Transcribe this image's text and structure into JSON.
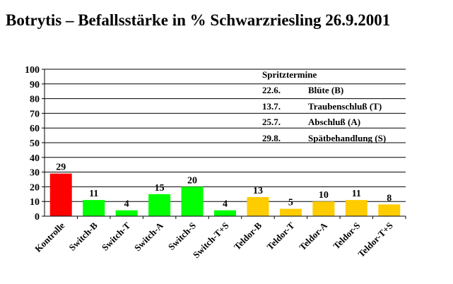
{
  "chart_data": {
    "type": "bar",
    "title": "Botrytis – Befallsstärke in % Schwarzriesling  26.9.2001",
    "xlabel": "",
    "ylabel": "",
    "ylim": [
      0,
      100
    ],
    "yticks": [
      0,
      10,
      20,
      30,
      40,
      50,
      60,
      70,
      80,
      90,
      100
    ],
    "grid": true,
    "categories": [
      "Kontrolle",
      "Switch-B",
      "Switch-T",
      "Switch-A",
      "Switch-S",
      "Switch-T+S",
      "Teldor-B",
      "Teldor-T",
      "Teldor-A",
      "Teldor-S",
      "Teldor-T+S"
    ],
    "values": [
      29,
      11,
      4,
      15,
      20,
      4,
      13,
      5,
      10,
      11,
      8
    ],
    "bar_colors": [
      "#ff0000",
      "#00ff00",
      "#00ff00",
      "#00ff00",
      "#00ff00",
      "#00ff00",
      "#ffcc00",
      "#ffcc00",
      "#ffcc00",
      "#ffcc00",
      "#ffcc00"
    ],
    "annotation": {
      "heading": "Spritztermine",
      "rows": [
        {
          "date": "22.6.",
          "label": "Blüte (B)"
        },
        {
          "date": "13.7.",
          "label": "Traubenschluß (T)"
        },
        {
          "date": "25.7.",
          "label": "Abschluß (A)"
        },
        {
          "date": "29.8.",
          "label": "Spätbehandlung (S)"
        }
      ]
    }
  }
}
